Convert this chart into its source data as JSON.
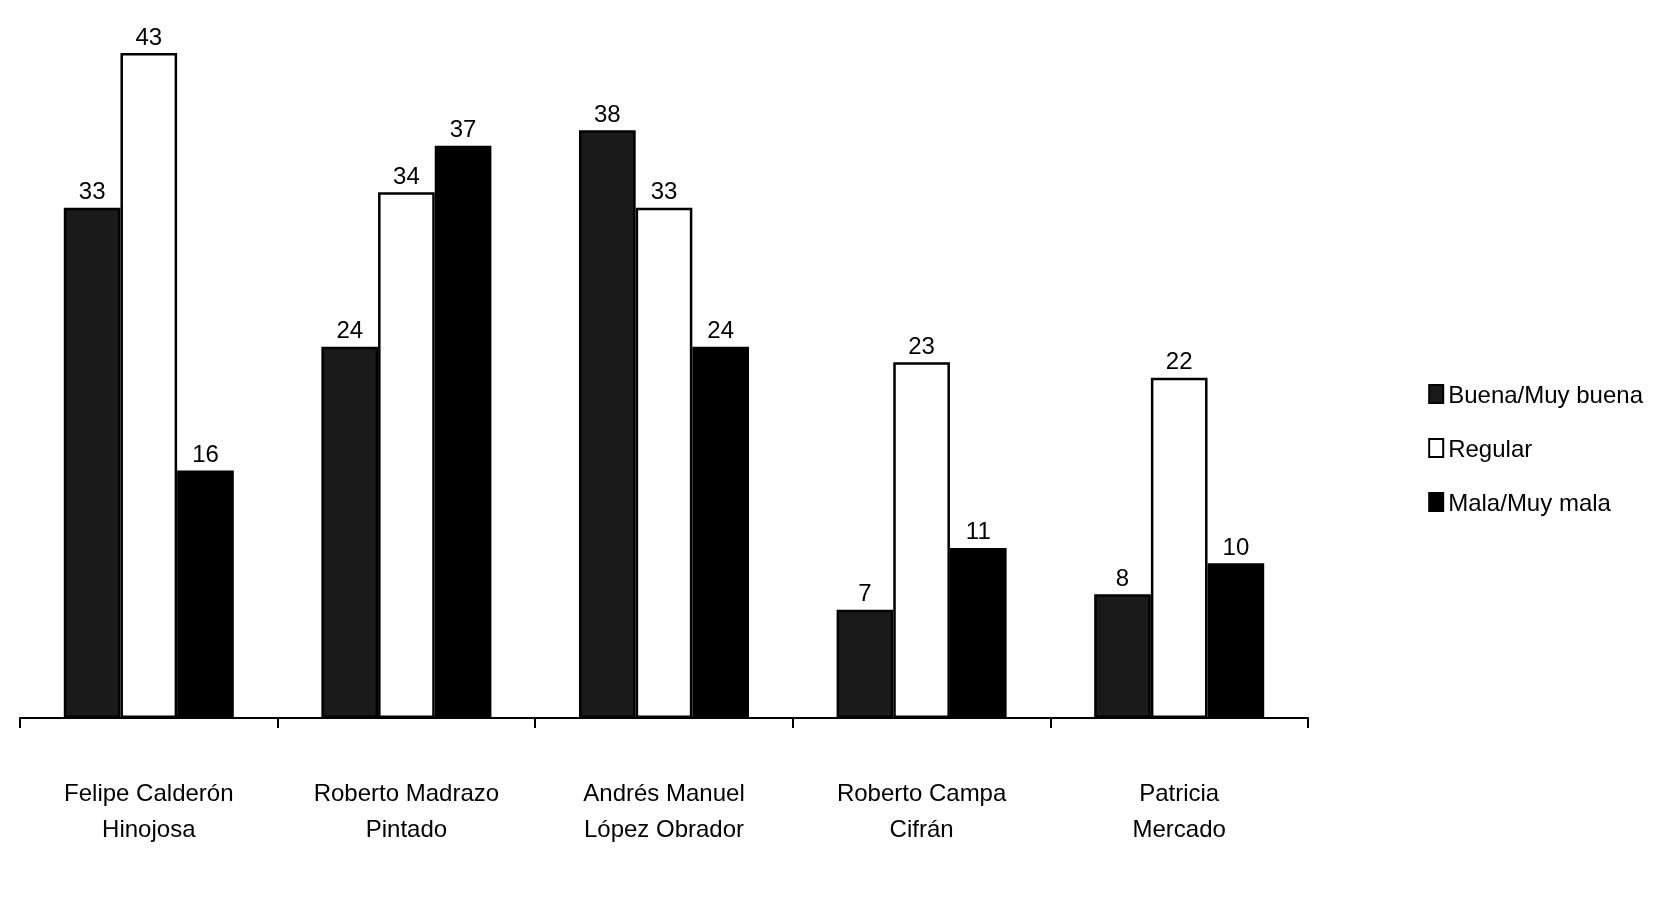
{
  "chart_data": {
    "type": "bar",
    "categories": [
      "Felipe Calderón\nHinojosa",
      "Roberto Madrazo\nPintado",
      "Andrés Manuel\nLópez Obrador",
      "Roberto Campa\nCifrán",
      "Patricia\nMercado"
    ],
    "series": [
      {
        "name": "Buena/Muy buena",
        "color": "#1a1a1a",
        "values": [
          33,
          24,
          38,
          7,
          8
        ]
      },
      {
        "name": "Regular",
        "color": "#ffffff",
        "values": [
          43,
          34,
          33,
          23,
          22
        ]
      },
      {
        "name": "Mala/Muy mala",
        "color": "#000000",
        "values": [
          16,
          37,
          24,
          11,
          10
        ]
      }
    ],
    "data_labels": true,
    "legend": "right"
  }
}
